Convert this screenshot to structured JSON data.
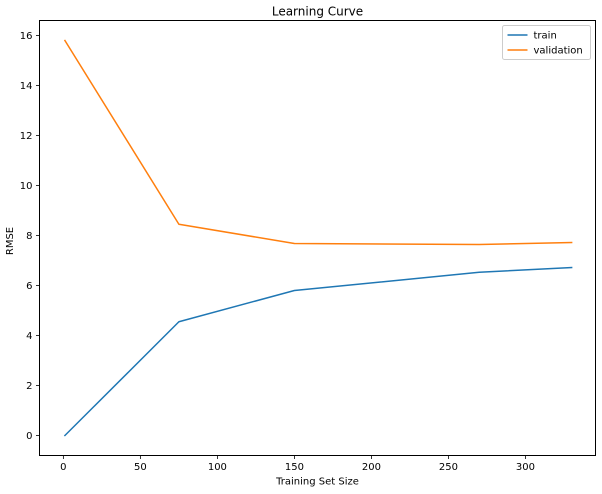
{
  "chart_data": {
    "type": "line",
    "title": "Learning Curve",
    "xlabel": "Training Set Size",
    "ylabel": "RMSE",
    "xlim": [
      -15.5,
      345.5
    ],
    "ylim": [
      -0.8,
      16.6
    ],
    "xticks": [
      0,
      50,
      100,
      150,
      200,
      250,
      300
    ],
    "yticks": [
      0,
      2,
      4,
      6,
      8,
      10,
      12,
      14,
      16
    ],
    "grid": false,
    "legend_position": "top-right",
    "series": [
      {
        "name": "train",
        "color": "#1f77b4",
        "x": [
          1,
          75,
          150,
          270,
          330
        ],
        "y": [
          0,
          4.55,
          5.8,
          6.53,
          6.72
        ]
      },
      {
        "name": "validation",
        "color": "#ff7f0e",
        "x": [
          1,
          75,
          150,
          270,
          330
        ],
        "y": [
          15.8,
          8.45,
          7.68,
          7.64,
          7.72
        ]
      }
    ]
  }
}
